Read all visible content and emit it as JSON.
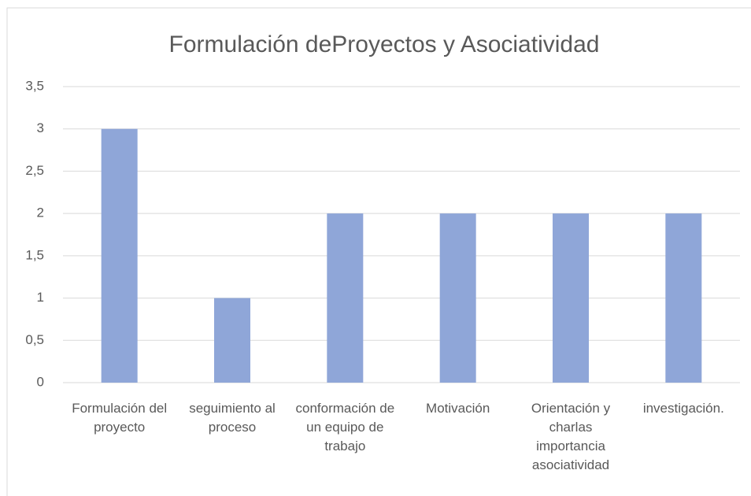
{
  "chart_data": {
    "type": "bar",
    "title": "Formulación deProyectos y Asociatividad",
    "categories": [
      "Formulación del proyecto",
      "seguimiento al proceso",
      "conformación de un equipo de trabajo",
      "Motivación",
      "Orientación y charlas importancia asociatividad",
      "investigación."
    ],
    "values": [
      3,
      1,
      2,
      2,
      2,
      2
    ],
    "color": "#8fa6d8",
    "ylim": [
      0,
      3.5
    ],
    "yticks": [
      0,
      {
        "value": 0.5,
        "label": "0,5"
      },
      1,
      {
        "value": 1.5,
        "label": "1,5"
      },
      2,
      {
        "value": 2.5,
        "label": "2,5"
      },
      3,
      {
        "value": 3.5,
        "label": "3,5"
      }
    ],
    "grid": true
  }
}
